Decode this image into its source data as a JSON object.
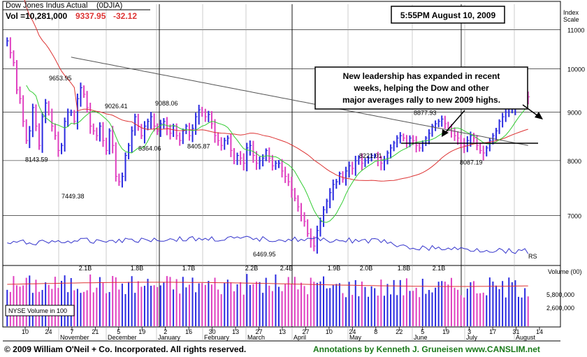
{
  "header": {
    "index_name": "Dow Jones Indus Actual",
    "symbol": "(0DJIA)",
    "volume_text": "Vol =10,281,000",
    "last_price": "9337.95",
    "change": "-32.12",
    "timestamp": "5:55PM August 10, 2009",
    "scale_label_1": "Index",
    "scale_label_2": "Scale"
  },
  "annotation": {
    "line1": "New leadership has expanded in recent",
    "line2": "weeks, helping the Dow and other",
    "line3": "major averages rally to new 2009 highs."
  },
  "footer": {
    "copyright": "© 2009 William O'Neil + Co. Incorporated. All rights reserved.",
    "annotations_credit": "Annotations by Kenneth J. Gruneisen www.CANSLIM.net"
  },
  "colors": {
    "up_bar": "#2a2ae0",
    "down_bar": "#e040c0",
    "ma50": "#33cc33",
    "ma200_red": "#dd3333",
    "ma_long": "#555555",
    "rs_line": "#3333cc",
    "annotation_text": "#000000",
    "footer_green": "#1a7a1a"
  },
  "chart_data": {
    "type": "line",
    "title": "Dow Jones Indus Actual",
    "y_axis": {
      "scale": "log",
      "ticks": [
        7000,
        8000,
        9000,
        10000,
        11000
      ],
      "range": [
        6200,
        11700
      ]
    },
    "x_axis": {
      "day_ticks": [
        "10",
        "24",
        "7",
        "21",
        "5",
        "19",
        "2",
        "16",
        "30",
        "13",
        "27",
        "13",
        "27",
        "10",
        "24",
        "8",
        "22",
        "5",
        "19",
        "3",
        "17",
        "31",
        "14"
      ],
      "months": [
        "November",
        "December",
        "January",
        "February",
        "March",
        "April",
        "May",
        "June",
        "July",
        "August"
      ]
    },
    "price_labels": [
      {
        "label": "9653.95",
        "value": 9653.95
      },
      {
        "label": "8143.59",
        "value": 8143.59
      },
      {
        "label": "7449.38",
        "value": 7449.38
      },
      {
        "label": "9026.41",
        "value": 9026.41
      },
      {
        "label": "8364.06",
        "value": 8364.06
      },
      {
        "label": "9088.06",
        "value": 9088.06
      },
      {
        "label": "8405.87",
        "value": 8405.87
      },
      {
        "label": "6469.95",
        "value": 6469.95
      },
      {
        "label": "8877.93",
        "value": 8877.93
      },
      {
        "label": "8221.01",
        "value": 8221.01
      },
      {
        "label": "8087.19",
        "value": 8087.19
      }
    ],
    "closes": [
      10700,
      10400,
      10150,
      9500,
      9300,
      8800,
      8400,
      8600,
      9100,
      8700,
      8300,
      8900,
      9200,
      9000,
      8700,
      8500,
      8200,
      8300,
      8800,
      9000,
      9000,
      8800,
      9300,
      9550,
      9400,
      9100,
      8700,
      8600,
      8500,
      8700,
      8400,
      8200,
      8600,
      8300,
      7700,
      7600,
      7700,
      8100,
      8300,
      8600,
      8900,
      8700,
      8500,
      8700,
      8800,
      8900,
      8700,
      8600,
      8750,
      8800,
      8650,
      8550,
      8700,
      8500,
      8400,
      8600,
      8700,
      8500,
      8650,
      8900,
      9050,
      9000,
      8900,
      8950,
      8750,
      8500,
      8400,
      8300,
      8400,
      8450,
      8200,
      8000,
      8100,
      8050,
      7950,
      8250,
      8300,
      8100,
      7950,
      8000,
      8050,
      8200,
      8050,
      7900,
      7950,
      7950,
      7800,
      7700,
      7600,
      7450,
      7300,
      7150,
      7000,
      6900,
      6700,
      6600,
      6500,
      6750,
      6900,
      7100,
      7250,
      7400,
      7550,
      7600,
      7750,
      7650,
      7800,
      7900,
      7850,
      8000,
      8050,
      7950,
      8000,
      8050,
      8100,
      8100,
      8000,
      7950,
      8000,
      8150,
      8250,
      8350,
      8450,
      8500,
      8450,
      8350,
      8450,
      8400,
      8300,
      8250,
      8350,
      8450,
      8550,
      8700,
      8750,
      8800,
      8850,
      8750,
      8650,
      8600,
      8500,
      8450,
      8350,
      8300,
      8400,
      8500,
      8450,
      8300,
      8200,
      8150,
      8250,
      8400,
      8500,
      8600,
      8800,
      8900,
      9000,
      9100,
      9100,
      9200,
      9250,
      9300,
      9350,
      9340
    ],
    "series": [
      {
        "name": "RS"
      },
      {
        "name": "NYSE Volume in 100"
      }
    ],
    "volume_axis": {
      "ticks": [
        "5,800,000",
        "2,600,000"
      ],
      "title": "Volume (00)"
    },
    "volume_labels": [
      "2.1B",
      "1.8B",
      "1.7B",
      "2.2B",
      "2.4B",
      "1.9B",
      "2.0B",
      "1.8B",
      "2.1B"
    ],
    "rs_label": "RS",
    "volume_legend": "NYSE Volume in 100"
  }
}
